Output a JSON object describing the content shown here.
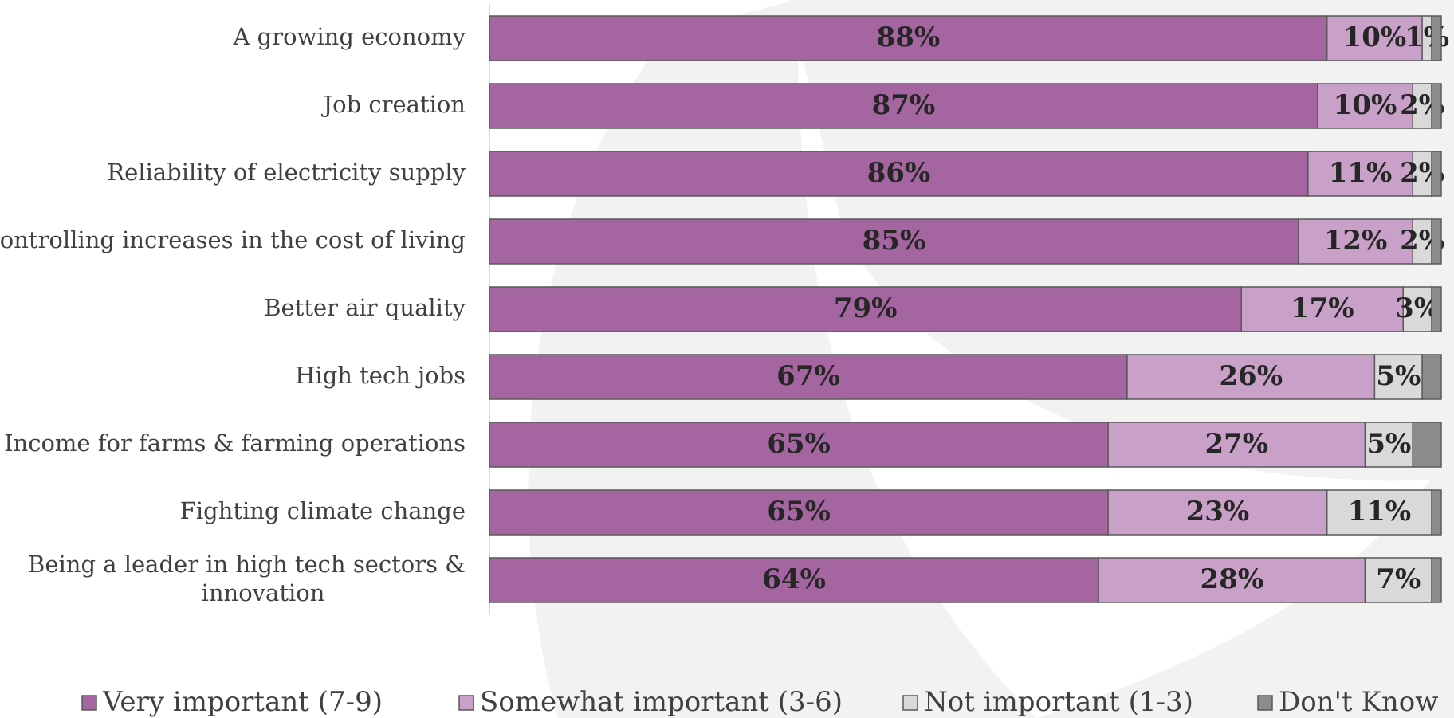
{
  "chart_data": {
    "type": "bar",
    "orientation": "horizontal",
    "stacked": true,
    "xlim": [
      0,
      100
    ],
    "grid": false,
    "legend_position": "bottom",
    "categories": [
      "A growing economy",
      "Job creation",
      "Reliability of electricity supply",
      "Controlling increases in the cost of living",
      "Better air quality",
      "High tech jobs",
      "Income for farms & farming operations",
      "Fighting climate change",
      "Being a leader in high tech sectors & innovation"
    ],
    "category_label_lines": [
      [
        "A growing economy"
      ],
      [
        "Job creation"
      ],
      [
        "Reliability of electricity supply"
      ],
      [
        "Controlling increases in the cost of living"
      ],
      [
        "Better air quality"
      ],
      [
        "High tech jobs"
      ],
      [
        "Income for farms & farming operations"
      ],
      [
        "Fighting climate change"
      ],
      [
        "Being a leader in high tech sectors &",
        "innovation"
      ]
    ],
    "series": [
      {
        "name": "Very important (7-9)",
        "color": "#a565a1",
        "values": [
          88,
          87,
          86,
          85,
          79,
          67,
          65,
          65,
          64
        ],
        "labels": [
          "88%",
          "87%",
          "86%",
          "85%",
          "79%",
          "67%",
          "65%",
          "65%",
          "64%"
        ]
      },
      {
        "name": "Somewhat important (3-6)",
        "color": "#c9a0c8",
        "values": [
          10,
          10,
          11,
          12,
          17,
          26,
          27,
          23,
          28
        ],
        "labels": [
          "10%",
          "10%",
          "11%",
          "12%",
          "17%",
          "26%",
          "27%",
          "23%",
          "28%"
        ]
      },
      {
        "name": "Not important (1-3)",
        "color": "#d9d9d9",
        "values": [
          1,
          2,
          2,
          2,
          3,
          5,
          5,
          11,
          7
        ],
        "labels": [
          "1%",
          "2%",
          "2%",
          "2%",
          "3%",
          "5%",
          "5%",
          "11%",
          "7%"
        ]
      },
      {
        "name": "Don't Know",
        "color": "#8c8c8c",
        "values": [
          1,
          1,
          1,
          1,
          1,
          2,
          3,
          1,
          1
        ],
        "labels": [
          "",
          "",
          "",
          "",
          "",
          "",
          "",
          "",
          ""
        ]
      }
    ]
  }
}
